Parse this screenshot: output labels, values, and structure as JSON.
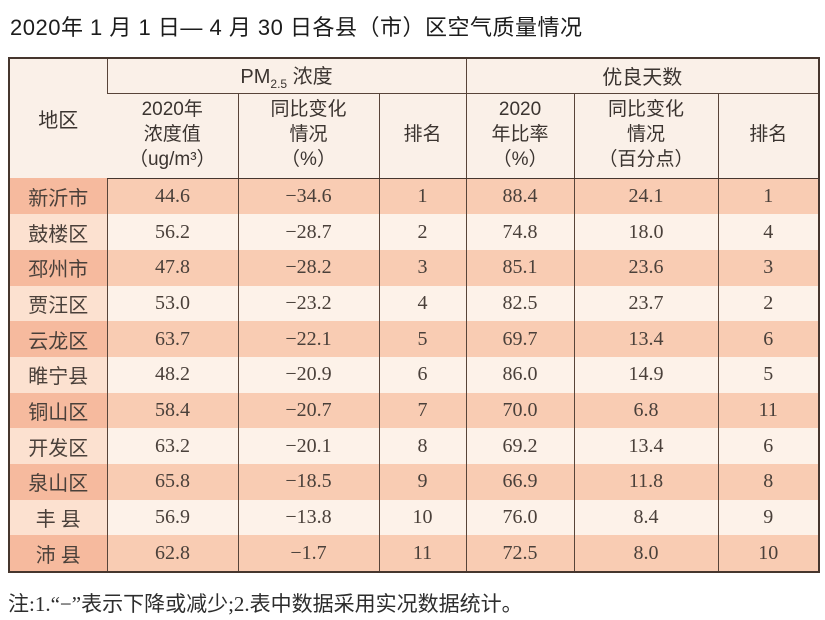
{
  "title": "2020年 1 月 1 日— 4 月 30 日各县（市）区空气质量情况",
  "colors": {
    "row_odd_bg": "#f9ccb3",
    "row_odd_first_bg": "#f6ba9e",
    "row_even_bg": "#fdf2e9",
    "row_even_first_bg": "#fce1d0",
    "header_bg": "#faf0e8",
    "border_dark": "#46362e"
  },
  "table": {
    "header": {
      "region": "地区",
      "pm25_group": {
        "base": "PM",
        "sub": "2.5",
        "rest": " 浓度"
      },
      "good_days_group": "优良天数",
      "sub_headers": {
        "pm_value": "2020年\n浓度值\n（ug/m³）",
        "pm_change": "同比变化\n情况\n（%）",
        "pm_rank": "排名",
        "days_rate": "2020\n年比率\n（%）",
        "days_change": "同比变化\n情况\n（百分点）",
        "days_rank": "排名"
      }
    },
    "rows": [
      {
        "region": "新沂市",
        "pm_value": "44.6",
        "pm_change": "−34.6",
        "pm_rank": "1",
        "days_rate": "88.4",
        "days_change": "24.1",
        "days_rank": "1"
      },
      {
        "region": "鼓楼区",
        "pm_value": "56.2",
        "pm_change": "−28.7",
        "pm_rank": "2",
        "days_rate": "74.8",
        "days_change": "18.0",
        "days_rank": "4"
      },
      {
        "region": "邳州市",
        "pm_value": "47.8",
        "pm_change": "−28.2",
        "pm_rank": "3",
        "days_rate": "85.1",
        "days_change": "23.6",
        "days_rank": "3"
      },
      {
        "region": "贾汪区",
        "pm_value": "53.0",
        "pm_change": "−23.2",
        "pm_rank": "4",
        "days_rate": "82.5",
        "days_change": "23.7",
        "days_rank": "2"
      },
      {
        "region": "云龙区",
        "pm_value": "63.7",
        "pm_change": "−22.1",
        "pm_rank": "5",
        "days_rate": "69.7",
        "days_change": "13.4",
        "days_rank": "6"
      },
      {
        "region": "睢宁县",
        "pm_value": "48.2",
        "pm_change": "−20.9",
        "pm_rank": "6",
        "days_rate": "86.0",
        "days_change": "14.9",
        "days_rank": "5"
      },
      {
        "region": "铜山区",
        "pm_value": "58.4",
        "pm_change": "−20.7",
        "pm_rank": "7",
        "days_rate": "70.0",
        "days_change": "6.8",
        "days_rank": "11"
      },
      {
        "region": "开发区",
        "pm_value": "63.2",
        "pm_change": "−20.1",
        "pm_rank": "8",
        "days_rate": "69.2",
        "days_change": "13.4",
        "days_rank": "6"
      },
      {
        "region": "泉山区",
        "pm_value": "65.8",
        "pm_change": "−18.5",
        "pm_rank": "9",
        "days_rate": "66.9",
        "days_change": "11.8",
        "days_rank": "8"
      },
      {
        "region": "丰 县",
        "pm_value": "56.9",
        "pm_change": "−13.8",
        "pm_rank": "10",
        "days_rate": "76.0",
        "days_change": "8.4",
        "days_rank": "9"
      },
      {
        "region": "沛 县",
        "pm_value": "62.8",
        "pm_change": "−1.7",
        "pm_rank": "11",
        "days_rate": "72.5",
        "days_change": "8.0",
        "days_rank": "10"
      }
    ]
  },
  "footnote": "注:1.“−”表示下降或减少;2.表中数据采用实况数据统计。"
}
